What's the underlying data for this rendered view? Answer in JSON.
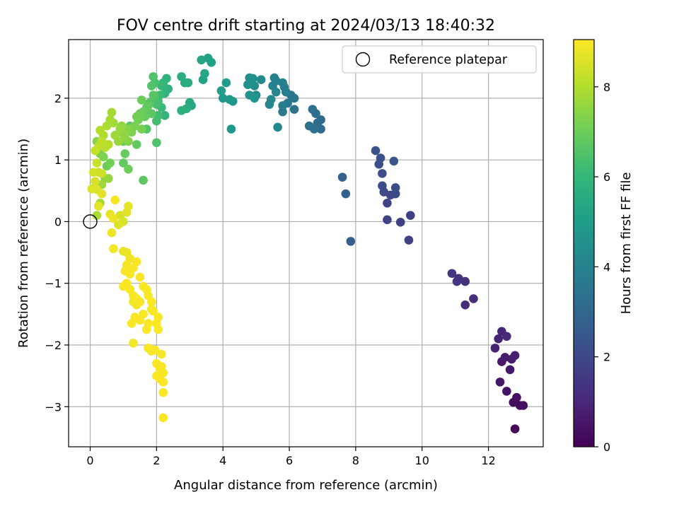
{
  "chart_data": {
    "type": "scatter",
    "title": "FOV centre drift starting at 2024/03/13 18:40:32",
    "xlabel": "Angular distance from reference (arcmin)",
    "ylabel": "Rotation from reference (arcmin)",
    "xlim": [
      -0.65,
      13.65
    ],
    "ylim": [
      -3.65,
      2.95
    ],
    "xticks": [
      0,
      2,
      4,
      6,
      8,
      10,
      12
    ],
    "yticks": [
      -3,
      -2,
      -1,
      0,
      1,
      2
    ],
    "grid": true,
    "legend": {
      "placement": "top-right",
      "entries": [
        {
          "label": "Reference platepar",
          "marker": "open-circle"
        }
      ]
    },
    "reference_point": {
      "x": 0,
      "y": 0
    },
    "colorbar": {
      "label": "Hours from first FF file",
      "min": 0,
      "max": 9.05,
      "ticks": [
        0,
        2,
        4,
        6,
        8
      ],
      "colormap": "viridis",
      "stops": [
        "#440154",
        "#482878",
        "#3e4989",
        "#31688e",
        "#26828e",
        "#1f9e89",
        "#35b779",
        "#6ece58",
        "#b5de2b",
        "#fde725"
      ]
    },
    "series": [
      {
        "points": [
          [
            12.8,
            -3.36,
            0.1
          ],
          [
            12.95,
            -2.98,
            0.2
          ],
          [
            12.75,
            -2.93,
            0.3
          ],
          [
            12.85,
            -2.85,
            0.35
          ],
          [
            13.05,
            -2.98,
            0.4
          ],
          [
            12.55,
            -2.75,
            0.5
          ],
          [
            12.35,
            -2.6,
            0.55
          ],
          [
            12.65,
            -2.4,
            0.6
          ],
          [
            12.4,
            -2.27,
            0.65
          ],
          [
            12.5,
            -2.2,
            0.7
          ],
          [
            12.7,
            -2.23,
            0.75
          ],
          [
            12.8,
            -2.17,
            0.8
          ],
          [
            12.2,
            -2.05,
            0.85
          ],
          [
            12.3,
            -1.9,
            0.9
          ],
          [
            12.4,
            -1.78,
            0.95
          ],
          [
            12.55,
            -1.86,
            1.0
          ],
          [
            11.3,
            -1.35,
            1.2
          ],
          [
            11.55,
            -1.25,
            1.25
          ],
          [
            11.3,
            -0.97,
            1.3
          ],
          [
            11.1,
            -0.92,
            1.35
          ],
          [
            11.05,
            -0.97,
            1.4
          ],
          [
            10.9,
            -0.84,
            1.45
          ],
          [
            9.65,
            0.1,
            1.7
          ],
          [
            9.35,
            -0.01,
            1.75
          ],
          [
            9.6,
            -0.3,
            1.8
          ],
          [
            8.95,
            0.03,
            1.85
          ],
          [
            8.95,
            0.3,
            1.9
          ],
          [
            9.05,
            0.43,
            1.95
          ],
          [
            8.85,
            0.48,
            2.0
          ],
          [
            9.2,
            0.45,
            2.05
          ],
          [
            9.2,
            0.55,
            2.1
          ],
          [
            8.8,
            0.58,
            2.15
          ],
          [
            8.8,
            0.78,
            2.2
          ],
          [
            8.7,
            0.93,
            2.25
          ],
          [
            8.75,
            1.03,
            2.3
          ],
          [
            8.6,
            1.15,
            2.35
          ],
          [
            9.15,
            0.98,
            2.4
          ],
          [
            7.85,
            -0.32,
            2.7
          ],
          [
            7.7,
            0.45,
            2.75
          ],
          [
            7.6,
            0.72,
            2.8
          ],
          [
            6.95,
            1.5,
            3.1
          ],
          [
            6.95,
            1.65,
            3.15
          ],
          [
            6.85,
            1.6,
            3.2
          ],
          [
            6.8,
            1.75,
            3.25
          ],
          [
            6.7,
            1.82,
            3.3
          ],
          [
            6.6,
            1.55,
            3.35
          ],
          [
            6.75,
            1.5,
            3.4
          ],
          [
            6.15,
            1.82,
            3.5
          ],
          [
            6.15,
            2.0,
            3.55
          ],
          [
            6.05,
            2.05,
            3.6
          ],
          [
            5.95,
            1.92,
            3.65
          ],
          [
            5.8,
            1.78,
            3.7
          ],
          [
            5.8,
            1.88,
            3.75
          ],
          [
            5.9,
            2.1,
            3.8
          ],
          [
            5.85,
            2.18,
            3.85
          ],
          [
            5.8,
            2.25,
            3.9
          ],
          [
            5.6,
            2.28,
            3.95
          ],
          [
            5.55,
            2.33,
            4.0
          ],
          [
            5.5,
            2.2,
            4.05
          ],
          [
            5.6,
            2.1,
            4.1
          ],
          [
            5.45,
            1.98,
            4.15
          ],
          [
            5.4,
            1.9,
            4.2
          ],
          [
            5.65,
            1.53,
            4.25
          ],
          [
            5.15,
            2.3,
            4.3
          ],
          [
            5.0,
            2.05,
            4.35
          ],
          [
            4.95,
            2.2,
            4.4
          ],
          [
            4.85,
            2.3,
            4.45
          ],
          [
            4.8,
            2.33,
            4.5
          ],
          [
            4.9,
            2.32,
            4.55
          ],
          [
            4.75,
            2.22,
            4.6
          ],
          [
            4.8,
            2.05,
            4.65
          ],
          [
            4.95,
            2.0,
            4.7
          ],
          [
            4.3,
            1.95,
            4.75
          ],
          [
            4.2,
            1.98,
            4.8
          ],
          [
            4.25,
            1.5,
            4.85
          ],
          [
            4.0,
            2.0,
            4.9
          ],
          [
            3.95,
            2.12,
            4.95
          ],
          [
            4.1,
            2.25,
            5.0
          ],
          [
            3.65,
            2.58,
            5.1
          ],
          [
            3.55,
            2.65,
            5.15
          ],
          [
            3.4,
            2.3,
            5.2
          ],
          [
            3.35,
            2.62,
            5.25
          ],
          [
            3.45,
            2.4,
            5.3
          ],
          [
            3.05,
            1.88,
            5.4
          ],
          [
            3.0,
            1.93,
            5.45
          ],
          [
            2.95,
            2.25,
            5.5
          ],
          [
            2.85,
            2.25,
            5.55
          ],
          [
            2.75,
            2.35,
            5.6
          ],
          [
            2.9,
            1.83,
            5.65
          ],
          [
            2.75,
            1.8,
            5.7
          ],
          [
            2.35,
            2.15,
            5.8
          ],
          [
            2.3,
            2.32,
            5.85
          ],
          [
            2.25,
            2.08,
            5.9
          ],
          [
            2.25,
            1.72,
            5.95
          ],
          [
            2.2,
            2.25,
            6.0
          ],
          [
            2.15,
            2.2,
            6.05
          ],
          [
            2.15,
            1.85,
            6.1
          ],
          [
            2.1,
            2.05,
            6.15
          ],
          [
            2.05,
            1.95,
            6.2
          ],
          [
            2.05,
            1.72,
            6.25
          ],
          [
            2.0,
            1.63,
            6.3
          ],
          [
            2.0,
            1.9,
            6.35
          ],
          [
            1.95,
            2.25,
            6.4
          ],
          [
            1.95,
            2.03,
            6.45
          ],
          [
            1.9,
            2.35,
            6.5
          ],
          [
            1.85,
            2.2,
            6.55
          ],
          [
            1.8,
            1.93,
            6.6
          ],
          [
            1.9,
            2.05,
            6.65
          ],
          [
            1.85,
            1.75,
            6.7
          ],
          [
            1.75,
            1.88,
            6.75
          ],
          [
            1.7,
            1.85,
            6.8
          ],
          [
            1.65,
            1.7,
            6.85
          ],
          [
            1.6,
            1.78,
            6.9
          ],
          [
            1.55,
            1.97,
            6.95
          ],
          [
            1.5,
            1.75,
            7.0
          ],
          [
            1.45,
            1.65,
            7.05
          ],
          [
            1.4,
            1.7,
            7.1
          ],
          [
            1.55,
            1.5,
            7.15
          ],
          [
            1.35,
            1.55,
            7.2
          ],
          [
            1.25,
            1.45,
            7.25
          ],
          [
            1.2,
            1.5,
            7.3
          ],
          [
            1.15,
            1.3,
            7.35
          ],
          [
            1.1,
            1.5,
            7.4
          ],
          [
            1.05,
            1.35,
            7.45
          ],
          [
            1.0,
            1.42,
            7.5
          ],
          [
            0.95,
            1.55,
            7.55
          ],
          [
            0.9,
            1.5,
            7.6
          ],
          [
            0.85,
            1.3,
            7.65
          ],
          [
            0.75,
            1.4,
            7.7
          ],
          [
            0.7,
            1.6,
            7.75
          ],
          [
            0.65,
            1.77,
            7.8
          ],
          [
            0.6,
            1.65,
            7.85
          ],
          [
            0.5,
            1.55,
            7.9
          ],
          [
            0.4,
            1.4,
            7.95
          ],
          [
            0.3,
            1.48,
            8.0
          ],
          [
            0.55,
            1.25,
            8.05
          ],
          [
            0.45,
            1.2,
            8.1
          ],
          [
            0.35,
            1.3,
            8.15
          ],
          [
            0.25,
            1.22,
            8.2
          ],
          [
            0.15,
            1.15,
            8.25
          ],
          [
            0.2,
            0.95,
            8.3
          ],
          [
            0.25,
            0.8,
            8.35
          ],
          [
            0.35,
            0.78,
            8.4
          ],
          [
            0.1,
            0.8,
            8.45
          ],
          [
            0.15,
            0.65,
            8.5
          ],
          [
            0.05,
            0.53,
            8.55
          ],
          [
            0.2,
            0.52,
            8.6
          ],
          [
            0.35,
            0.45,
            8.65
          ],
          [
            0.25,
            0.25,
            8.7
          ],
          [
            0.6,
            0.12,
            8.75
          ],
          [
            0.7,
            0.05,
            8.8
          ],
          [
            0.65,
            -0.18,
            8.85
          ],
          [
            0.7,
            -0.44,
            8.9
          ],
          [
            0.75,
            0.35,
            8.95
          ]
        ]
      },
      {
        "points": [
          [
            0.5,
            0.9,
            7.0
          ],
          [
            0.6,
            0.95,
            7.1
          ],
          [
            0.4,
            1.05,
            7.2
          ],
          [
            0.3,
            1.1,
            7.3
          ],
          [
            0.2,
            1.3,
            7.4
          ],
          [
            0.45,
            0.7,
            7.5
          ],
          [
            0.55,
            0.7,
            7.6
          ],
          [
            0.35,
            0.6,
            7.7
          ],
          [
            0.3,
            0.3,
            7.8
          ],
          [
            0.2,
            0.1,
            7.9
          ],
          [
            1.0,
            0.95,
            6.8
          ],
          [
            1.05,
            1.1,
            6.9
          ],
          [
            1.15,
            0.85,
            7.0
          ],
          [
            1.6,
            0.67,
            6.7
          ],
          [
            1.4,
            1.25,
            6.8
          ],
          [
            1.7,
            1.5,
            6.6
          ],
          [
            1.2,
            1.55,
            6.7
          ],
          [
            1.0,
            1.3,
            6.9
          ],
          [
            2.0,
            1.28,
            6.5
          ]
        ]
      },
      {
        "points": [
          [
            0.9,
            0.1,
            8.5
          ],
          [
            1.0,
            0.0,
            8.55
          ],
          [
            0.85,
            -0.05,
            8.6
          ],
          [
            1.1,
            0.15,
            8.65
          ],
          [
            1.15,
            0.25,
            8.7
          ],
          [
            1.0,
            -0.48,
            8.75
          ],
          [
            1.1,
            -0.5,
            8.8
          ],
          [
            1.2,
            -0.6,
            8.85
          ],
          [
            1.1,
            -0.7,
            8.9
          ],
          [
            1.05,
            -0.8,
            8.95
          ],
          [
            1.3,
            -0.75,
            9.0
          ],
          [
            1.2,
            -0.85,
            9.0
          ],
          [
            1.4,
            -0.65,
            9.0
          ],
          [
            1.5,
            -0.9,
            9.0
          ],
          [
            1.0,
            -1.05,
            9.0
          ],
          [
            1.1,
            -1.0,
            9.0
          ],
          [
            1.2,
            -1.1,
            9.0
          ],
          [
            1.3,
            -1.2,
            9.0
          ],
          [
            1.4,
            -1.25,
            9.0
          ],
          [
            1.5,
            -1.3,
            9.0
          ],
          [
            1.6,
            -1.05,
            9.0
          ],
          [
            1.7,
            -1.1,
            9.0
          ],
          [
            1.75,
            -1.2,
            9.0
          ],
          [
            1.85,
            -1.3,
            9.0
          ],
          [
            1.9,
            -1.45,
            9.0
          ],
          [
            2.05,
            -1.55,
            9.0
          ],
          [
            1.6,
            -1.5,
            9.0
          ],
          [
            1.5,
            -1.6,
            9.0
          ],
          [
            1.35,
            -1.55,
            9.0
          ],
          [
            1.25,
            -1.65,
            9.0
          ],
          [
            1.7,
            -1.75,
            9.0
          ],
          [
            1.75,
            -1.65,
            9.0
          ],
          [
            2.05,
            -1.75,
            9.0
          ],
          [
            2.0,
            -1.65,
            9.0
          ],
          [
            1.75,
            -2.05,
            9.0
          ],
          [
            1.85,
            -2.1,
            9.0
          ],
          [
            1.95,
            -2.08,
            9.0
          ],
          [
            2.15,
            -2.15,
            9.0
          ],
          [
            2.0,
            -2.3,
            9.0
          ],
          [
            2.1,
            -2.38,
            9.0
          ],
          [
            2.15,
            -2.35,
            9.0
          ],
          [
            2.2,
            -2.45,
            9.0
          ],
          [
            2.0,
            -2.5,
            9.0
          ],
          [
            2.1,
            -2.55,
            9.0
          ],
          [
            2.2,
            -2.6,
            9.0
          ],
          [
            2.2,
            -2.77,
            9.0
          ],
          [
            2.2,
            -3.18,
            9.05
          ],
          [
            1.3,
            -1.97,
            8.9
          ],
          [
            1.85,
            -1.42,
            8.9
          ],
          [
            1.4,
            -1.35,
            8.9
          ],
          [
            1.3,
            -1.3,
            8.9
          ]
        ]
      }
    ]
  }
}
